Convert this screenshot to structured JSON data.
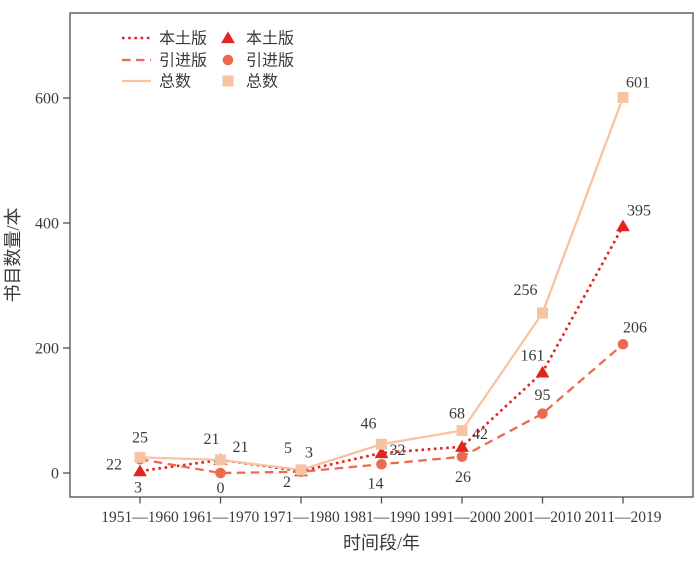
{
  "chart_data": {
    "type": "line",
    "title": "",
    "xlabel": "时间段/年",
    "ylabel": "书目数量/本",
    "categories": [
      "1951—1960",
      "1961—1970",
      "1971—1980",
      "1981—1990",
      "1991—2000",
      "2001—2010",
      "2011—2019"
    ],
    "y_ticks": [
      0,
      200,
      400,
      600
    ],
    "ylim": [
      0,
      736
    ],
    "grid": false,
    "legend_position": "top-left",
    "series": [
      {
        "key": "local",
        "name": "本土版",
        "values": [
          3,
          21,
          3,
          32,
          42,
          161,
          395
        ],
        "color": "#e2241e",
        "line_style": "dotted",
        "marker": "triangle",
        "labels": [
          {
            "text": "3",
            "dx": -2,
            "dy": 16
          },
          {
            "text": "21",
            "dx": 20,
            "dy": -13
          },
          {
            "text": "3",
            "dx": 8,
            "dy": -19
          },
          {
            "text": "32",
            "dx": 16,
            "dy": -3
          },
          {
            "text": "42",
            "dx": 18,
            "dy": -13
          },
          {
            "text": "161",
            "dx": -10,
            "dy": -17
          },
          {
            "text": "395",
            "dx": 16,
            "dy": -16
          }
        ]
      },
      {
        "key": "imported",
        "name": "引进版",
        "values": [
          22,
          0,
          2,
          14,
          26,
          95,
          206
        ],
        "color": "#ec6a50",
        "line_style": "dashed",
        "marker": "circle",
        "labels": [
          {
            "text": "22",
            "dx": -26,
            "dy": 5
          },
          {
            "text": "0",
            "dx": 0,
            "dy": 15
          },
          {
            "text": "2",
            "dx": -14,
            "dy": 10
          },
          {
            "text": "14",
            "dx": -6,
            "dy": 19
          },
          {
            "text": "26",
            "dx": 1,
            "dy": 20
          },
          {
            "text": "95",
            "dx": 0,
            "dy": -19
          },
          {
            "text": "206",
            "dx": 12,
            "dy": -17
          }
        ]
      },
      {
        "key": "total",
        "name": "总数",
        "values": [
          25,
          21,
          5,
          46,
          68,
          256,
          601
        ],
        "color": "#f6c3a3",
        "line_style": "solid",
        "marker": "square",
        "labels": [
          {
            "text": "25",
            "dx": 0,
            "dy": -20
          },
          {
            "text": "21",
            "dx": -9,
            "dy": -21
          },
          {
            "text": "5",
            "dx": -13,
            "dy": -22
          },
          {
            "text": "46",
            "dx": -13,
            "dy": -21
          },
          {
            "text": "68",
            "dx": -5,
            "dy": -17
          },
          {
            "text": "256",
            "dx": -17,
            "dy": -23
          },
          {
            "text": "601",
            "dx": 15,
            "dy": -15
          }
        ]
      }
    ]
  },
  "colors": {
    "text": "#3a3a3a",
    "axis": "#4d4d4d",
    "background": "#ffffff"
  }
}
